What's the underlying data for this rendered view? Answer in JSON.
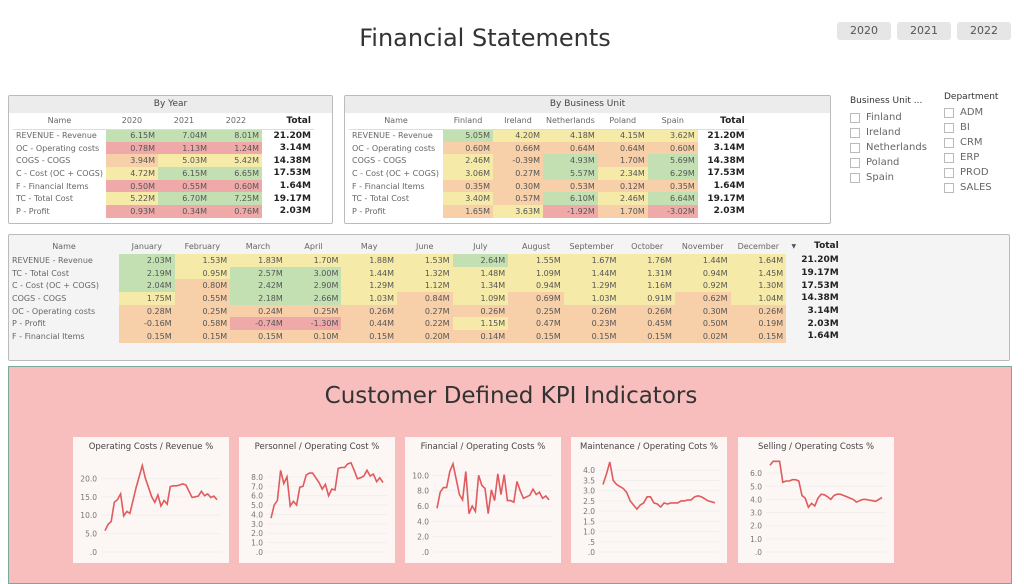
{
  "title": "Financial Statements",
  "years": [
    "2020",
    "2021",
    "2022"
  ],
  "by_year": {
    "title": "By Year",
    "columns": [
      "Name",
      "2020",
      "2021",
      "2022",
      "Total"
    ],
    "rows": [
      [
        "REVENUE - Revenue",
        "6.15M",
        "7.04M",
        "8.01M",
        "21.20M"
      ],
      [
        "OC - Operating costs",
        "0.78M",
        "1.13M",
        "1.24M",
        "3.14M"
      ],
      [
        "COGS - COGS",
        "3.94M",
        "5.03M",
        "5.42M",
        "14.38M"
      ],
      [
        "C - Cost (OC + COGS)",
        "4.72M",
        "6.15M",
        "6.65M",
        "17.53M"
      ],
      [
        "F - Financial Items",
        "0.50M",
        "0.55M",
        "0.60M",
        "1.64M"
      ],
      [
        "TC - Total Cost",
        "5.22M",
        "6.70M",
        "7.25M",
        "19.17M"
      ],
      [
        "P - Profit",
        "0.93M",
        "0.34M",
        "0.76M",
        "2.03M"
      ]
    ]
  },
  "by_unit": {
    "title": "By Business Unit",
    "columns": [
      "Name",
      "Finland",
      "Ireland",
      "Netherlands",
      "Poland",
      "Spain",
      "Total"
    ],
    "rows": [
      [
        "REVENUE - Revenue",
        "5.05M",
        "4.20M",
        "4.18M",
        "4.15M",
        "3.62M",
        "21.20M"
      ],
      [
        "OC - Operating costs",
        "0.60M",
        "0.66M",
        "0.64M",
        "0.64M",
        "0.60M",
        "3.14M"
      ],
      [
        "COGS - COGS",
        "2.46M",
        "-0.39M",
        "4.93M",
        "1.70M",
        "5.69M",
        "14.38M"
      ],
      [
        "C - Cost (OC + COGS)",
        "3.06M",
        "0.27M",
        "5.57M",
        "2.34M",
        "6.29M",
        "17.53M"
      ],
      [
        "F - Financial Items",
        "0.35M",
        "0.30M",
        "0.53M",
        "0.12M",
        "0.35M",
        "1.64M"
      ],
      [
        "TC - Total Cost",
        "3.40M",
        "0.57M",
        "6.10M",
        "2.46M",
        "6.64M",
        "19.17M"
      ],
      [
        "P - Profit",
        "1.65M",
        "3.63M",
        "-1.92M",
        "1.70M",
        "-3.02M",
        "2.03M"
      ]
    ]
  },
  "monthly": {
    "columns": [
      "Name",
      "January",
      "February",
      "March",
      "April",
      "May",
      "June",
      "July",
      "August",
      "September",
      "October",
      "November",
      "December",
      "Total"
    ],
    "rows": [
      [
        "REVENUE - Revenue",
        "2.03M",
        "1.53M",
        "1.83M",
        "1.70M",
        "1.88M",
        "1.53M",
        "2.64M",
        "1.55M",
        "1.67M",
        "1.76M",
        "1.44M",
        "1.64M",
        "21.20M"
      ],
      [
        "TC - Total Cost",
        "2.19M",
        "0.95M",
        "2.57M",
        "3.00M",
        "1.44M",
        "1.32M",
        "1.48M",
        "1.09M",
        "1.44M",
        "1.31M",
        "0.94M",
        "1.45M",
        "19.17M"
      ],
      [
        "C - Cost (OC + COGS)",
        "2.04M",
        "0.80M",
        "2.42M",
        "2.90M",
        "1.29M",
        "1.12M",
        "1.34M",
        "0.94M",
        "1.29M",
        "1.16M",
        "0.92M",
        "1.30M",
        "17.53M"
      ],
      [
        "COGS - COGS",
        "1.75M",
        "0.55M",
        "2.18M",
        "2.66M",
        "1.03M",
        "0.84M",
        "1.09M",
        "0.69M",
        "1.03M",
        "0.91M",
        "0.62M",
        "1.04M",
        "14.38M"
      ],
      [
        "OC - Operating costs",
        "0.28M",
        "0.25M",
        "0.24M",
        "0.25M",
        "0.26M",
        "0.27M",
        "0.26M",
        "0.25M",
        "0.26M",
        "0.26M",
        "0.30M",
        "0.26M",
        "3.14M"
      ],
      [
        "P - Profit",
        "-0.16M",
        "0.58M",
        "-0.74M",
        "-1.30M",
        "0.44M",
        "0.22M",
        "1.15M",
        "0.47M",
        "0.23M",
        "0.45M",
        "0.50M",
        "0.19M",
        "2.03M"
      ],
      [
        "F - Financial Items",
        "0.15M",
        "0.15M",
        "0.15M",
        "0.10M",
        "0.15M",
        "0.20M",
        "0.14M",
        "0.15M",
        "0.15M",
        "0.15M",
        "0.02M",
        "0.15M",
        "1.64M"
      ]
    ]
  },
  "slicers": {
    "business_unit": {
      "label": "Business Unit ...",
      "items": [
        "Finland",
        "Ireland",
        "Netherlands",
        "Poland",
        "Spain"
      ]
    },
    "department": {
      "label": "Department",
      "items": [
        "ADM",
        "BI",
        "CRM",
        "ERP",
        "PROD",
        "SALES"
      ]
    }
  },
  "heat_colors": [
    "#f0a9a9",
    "#f7cfa9",
    "#f5eaa8",
    "#c3e0b2"
  ],
  "line_color": "#e05a5e",
  "kpi": {
    "title": "Customer Defined KPI Indicators"
  },
  "chart_data": [
    {
      "type": "line",
      "title": "Operating Costs / Revenue %",
      "ylim": [
        0,
        25
      ],
      "ticks": [
        ".0",
        "5.0",
        "10.0",
        "15.0",
        "20.0"
      ],
      "tick_values": [
        0,
        5,
        10,
        15,
        20
      ],
      "values": [
        5.8,
        7.5,
        8.3,
        13.5,
        14.2,
        15.8,
        9.8,
        11,
        10.5,
        14,
        17.5,
        20.5,
        23.5,
        20,
        17.5,
        15,
        13.5,
        15.5,
        12.5,
        14,
        13,
        17.8,
        18,
        18,
        18.2,
        18.5,
        18.2,
        16.5,
        14.8,
        15,
        15.2,
        16.5,
        15.3,
        15.8,
        14.8,
        15.2,
        14.2
      ]
    },
    {
      "type": "line",
      "title": "Personnel / Operating Cost %",
      "ylim": [
        0,
        9.8
      ],
      "ticks": [
        ".0",
        "1.0",
        "2.0",
        "3.0",
        "4.0",
        "5.0",
        "6.0",
        "7.0",
        "8.0"
      ],
      "tick_values": [
        0,
        1,
        2,
        3,
        4,
        5,
        6,
        7,
        8
      ],
      "values": [
        3.6,
        5,
        5.5,
        8.7,
        7.3,
        8,
        4.9,
        5.4,
        5,
        6.9,
        7,
        8.2,
        8.4,
        8.4,
        7.9,
        7.4,
        6.7,
        7.2,
        6,
        6.7,
        6.6,
        8.9,
        9,
        9,
        9.4,
        9.5,
        8.7,
        7.8,
        7.9,
        8.1,
        8.7,
        8.1,
        8.3,
        7.5,
        7.9,
        7.4
      ]
    },
    {
      "type": "line",
      "title": "Financial / Operating Costs %",
      "ylim": [
        0,
        12
      ],
      "ticks": [
        ".0",
        "2.0",
        "4.0",
        "6.0",
        "8.0",
        "10.0"
      ],
      "tick_values": [
        0,
        2,
        4,
        6,
        8,
        10
      ],
      "values": [
        5.7,
        7.8,
        8.4,
        8.4,
        10.5,
        11.5,
        9.5,
        7.5,
        6.8,
        10.5,
        5,
        6,
        5.3,
        10,
        8.7,
        8.3,
        5,
        8.1,
        6.7,
        10.2,
        7.5,
        10.1,
        6.7,
        6.7,
        6.5,
        9.2,
        8,
        7,
        7.2,
        7.4,
        8.2,
        7.5,
        7.8,
        7,
        7.3,
        6.8
      ]
    },
    {
      "type": "line",
      "title": "Maintenance / Operating Cots %",
      "ylim": [
        0,
        4.5
      ],
      "ticks": [
        ".0",
        ".5",
        "1.0",
        "1.5",
        "2.0",
        "2.5",
        "3.0",
        "3.5",
        "4.0"
      ],
      "tick_values": [
        0,
        0.5,
        1,
        1.5,
        2,
        2.5,
        3,
        3.5,
        4
      ],
      "values": [
        3.3,
        3.8,
        4.4,
        3.5,
        3.3,
        3.2,
        3.1,
        2.9,
        2.5,
        2.3,
        2.1,
        2.3,
        2.4,
        2.7,
        2.7,
        2.4,
        2.35,
        2.2,
        2.4,
        2.35,
        2.4,
        2.4,
        2.4,
        2.5,
        2.5,
        2.55,
        2.55,
        2.7,
        2.75,
        2.7,
        2.6,
        2.5,
        2.45,
        2.4
      ]
    },
    {
      "type": "line",
      "title": "Selling / Operating Costs %",
      "ylim": [
        0,
        7
      ],
      "ticks": [
        ".0",
        "1.0",
        "2.0",
        "3.0",
        "4.0",
        "5.0",
        "6.0"
      ],
      "tick_values": [
        0,
        1,
        2,
        3,
        4,
        5,
        6
      ],
      "values": [
        6.6,
        6.9,
        6.9,
        6.9,
        5.3,
        5.4,
        5.4,
        5.5,
        5.5,
        5.4,
        4.3,
        4.1,
        3.4,
        3.7,
        3.5,
        4.1,
        4.4,
        4.35,
        4.2,
        4.0,
        4.3,
        4.4,
        4.4,
        4.3,
        4.2,
        4.1,
        4.0,
        3.8,
        3.9,
        4.0,
        4.0,
        3.95,
        3.9,
        3.85,
        4.0,
        4.15
      ]
    }
  ]
}
